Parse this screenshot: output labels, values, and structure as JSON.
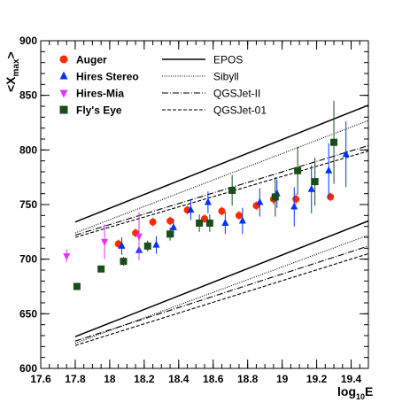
{
  "chart_data": {
    "type": "scatter",
    "xlabel": "log",
    "xlabel_sub": "10",
    "xlabel_suffix": "E",
    "ylabel": "<X",
    "ylabel_sub": "max",
    "ylabel_suffix": ">",
    "xlim": [
      17.6,
      19.5
    ],
    "ylim": [
      600,
      900
    ],
    "xticks": [
      "17.6",
      "17.8",
      "18",
      "18.2",
      "18.4",
      "18.6",
      "18.8",
      "19",
      "19.2",
      "19.4"
    ],
    "yticks": [
      "600",
      "650",
      "700",
      "750",
      "800",
      "850",
      "900"
    ],
    "grid": false,
    "legend_position": "top-left",
    "series": [
      {
        "name": "Auger",
        "marker": "circle",
        "color": "#ff2a00",
        "points": [
          {
            "x": 18.05,
            "y": 714,
            "err": 4
          },
          {
            "x": 18.15,
            "y": 724,
            "err": 4
          },
          {
            "x": 18.25,
            "y": 734,
            "err": 4
          },
          {
            "x": 18.35,
            "y": 735,
            "err": 4
          },
          {
            "x": 18.45,
            "y": 745,
            "err": 4
          },
          {
            "x": 18.55,
            "y": 737,
            "err": 4
          },
          {
            "x": 18.65,
            "y": 744,
            "err": 4
          },
          {
            "x": 18.75,
            "y": 740,
            "err": 4
          },
          {
            "x": 18.85,
            "y": 749,
            "err": 4
          },
          {
            "x": 18.95,
            "y": 755,
            "err": 5
          },
          {
            "x": 19.08,
            "y": 755,
            "err": 5
          },
          {
            "x": 19.28,
            "y": 757,
            "err": 4
          }
        ]
      },
      {
        "name": "Hires Stereo",
        "marker": "triangle-up",
        "color": "#0033ff",
        "points": [
          {
            "x": 18.07,
            "y": 712,
            "err": 8
          },
          {
            "x": 18.17,
            "y": 708,
            "err": 8
          },
          {
            "x": 18.27,
            "y": 713,
            "err": 8
          },
          {
            "x": 18.37,
            "y": 729,
            "err": 8
          },
          {
            "x": 18.47,
            "y": 745,
            "err": 9
          },
          {
            "x": 18.57,
            "y": 752,
            "err": 10
          },
          {
            "x": 18.67,
            "y": 733,
            "err": 10
          },
          {
            "x": 18.77,
            "y": 735,
            "err": 12
          },
          {
            "x": 18.87,
            "y": 752,
            "err": 13
          },
          {
            "x": 18.97,
            "y": 760,
            "err": 13
          },
          {
            "x": 19.07,
            "y": 748,
            "err": 18
          },
          {
            "x": 19.17,
            "y": 764,
            "err": 22
          },
          {
            "x": 19.27,
            "y": 781,
            "err": 25
          },
          {
            "x": 19.37,
            "y": 796,
            "err": 30
          }
        ]
      },
      {
        "name": "Hires-Mia",
        "marker": "triangle-down",
        "color": "#e433ff",
        "points": [
          {
            "x": 17.75,
            "y": 703,
            "err": 6
          },
          {
            "x": 17.97,
            "y": 716,
            "err": 16
          },
          {
            "x": 18.17,
            "y": 721,
            "err": 22
          }
        ]
      },
      {
        "name": "Fly's Eye",
        "marker": "square",
        "color": "#1a4d1a",
        "points": [
          {
            "x": 17.81,
            "y": 675,
            "err": 3
          },
          {
            "x": 17.95,
            "y": 691,
            "err": 3
          },
          {
            "x": 18.08,
            "y": 698,
            "err": 4
          },
          {
            "x": 18.22,
            "y": 712,
            "err": 5
          },
          {
            "x": 18.35,
            "y": 723,
            "err": 6
          },
          {
            "x": 18.52,
            "y": 733,
            "err": 8
          },
          {
            "x": 18.58,
            "y": 733,
            "err": 8
          },
          {
            "x": 18.71,
            "y": 763,
            "err": 14
          },
          {
            "x": 18.96,
            "y": 757,
            "err": 18
          },
          {
            "x": 19.09,
            "y": 781,
            "err": 22
          },
          {
            "x": 19.19,
            "y": 771,
            "err": 22
          },
          {
            "x": 19.3,
            "y": 807,
            "err": 38
          }
        ]
      }
    ],
    "model_lines": [
      {
        "name": "EPOS",
        "style": "solid",
        "upper": {
          "x": [
            17.8,
            19.5
          ],
          "y": [
            734,
            841
          ]
        },
        "lower": {
          "x": [
            17.8,
            19.5
          ],
          "y": [
            629,
            735
          ]
        }
      },
      {
        "name": "Sibyll",
        "style": "dotted",
        "upper": {
          "x": [
            17.8,
            19.5
          ],
          "y": [
            724,
            827
          ]
        },
        "lower": {
          "x": [
            17.8,
            19.5
          ],
          "y": [
            623,
            722
          ]
        }
      },
      {
        "name": "QGSJet-II",
        "style": "dashdot",
        "upper": {
          "x": [
            17.8,
            19.5
          ],
          "y": [
            722,
            804
          ]
        },
        "lower": {
          "x": [
            17.8,
            19.5
          ],
          "y": [
            625,
            712
          ]
        }
      },
      {
        "name": "QGSJet-01",
        "style": "dashed",
        "upper": {
          "x": [
            17.8,
            19.5
          ],
          "y": [
            720,
            799
          ]
        },
        "lower": {
          "x": [
            17.8,
            19.5
          ],
          "y": [
            621,
            705
          ]
        }
      }
    ]
  }
}
